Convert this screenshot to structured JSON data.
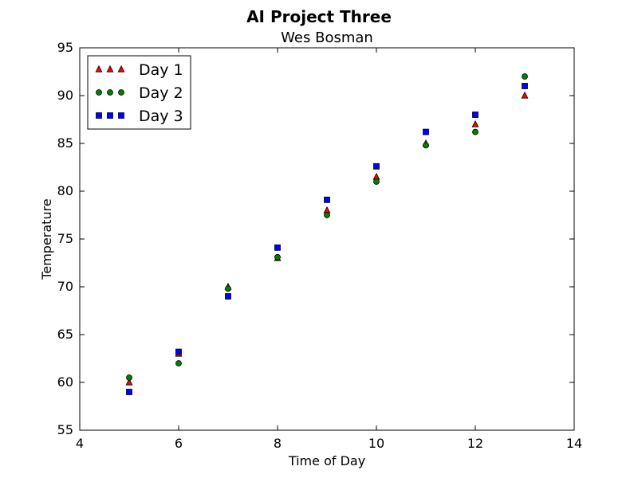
{
  "chart_data": {
    "type": "scatter",
    "title": "AI Project Three",
    "subtitle": "Wes Bosman",
    "xlabel": "Time of Day",
    "ylabel": "Temperature",
    "xlim": [
      4,
      14
    ],
    "ylim": [
      55,
      95
    ],
    "xticks": [
      4,
      6,
      8,
      10,
      12,
      14
    ],
    "yticks": [
      55,
      60,
      65,
      70,
      75,
      80,
      85,
      90,
      95
    ],
    "grid": false,
    "legend_position": "top-left",
    "series": [
      {
        "name": "Day 1",
        "marker": "triangle",
        "color": "#ff0000",
        "x": [
          5,
          6,
          7,
          8,
          9,
          10,
          11,
          12,
          13
        ],
        "y": [
          60,
          63,
          70,
          73,
          78,
          81.5,
          85,
          87,
          90
        ]
      },
      {
        "name": "Day 2",
        "marker": "circle",
        "color": "#008000",
        "x": [
          5,
          6,
          7,
          8,
          9,
          10,
          11,
          12,
          13
        ],
        "y": [
          60.5,
          62,
          69.8,
          73.1,
          77.5,
          81,
          84.8,
          86.2,
          92
        ]
      },
      {
        "name": "Day 3",
        "marker": "square",
        "color": "#0000ff",
        "x": [
          5,
          6,
          7,
          8,
          9,
          10,
          11,
          12,
          13
        ],
        "y": [
          59,
          63.2,
          69,
          74.1,
          79.1,
          82.6,
          86.2,
          88,
          91
        ]
      }
    ]
  }
}
